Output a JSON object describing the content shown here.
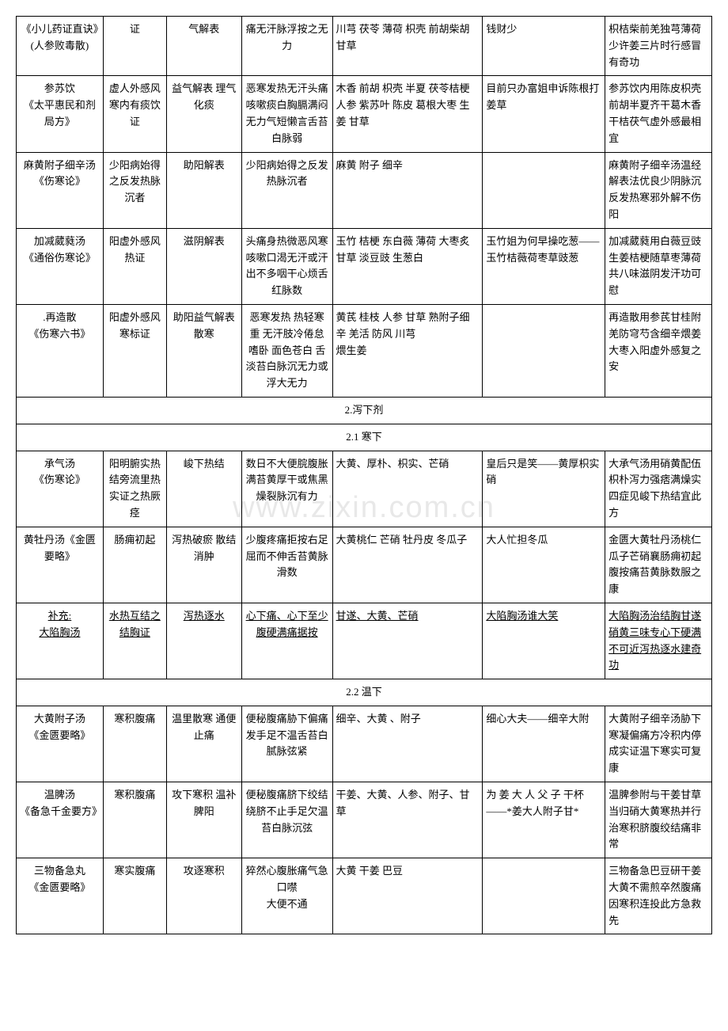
{
  "watermark": "www.zixin.com.cn",
  "rows": [
    {
      "c0": "《小儿药证直诀》(人参败毒散)",
      "c1": "证",
      "c2": "气解表",
      "c3": "痛无汗脉浮按之无力",
      "c4": "川芎 茯苓 薄荷 枳壳 前胡柴胡 甘草",
      "c5": "钱财少",
      "c6": "枳桔柴前羌独芎薄荷少许姜三片时行感冒有奇功"
    },
    {
      "c0": "参苏饮\n《太平惠民和剂局方》",
      "c1": "虚人外感风寒内有痰饮证",
      "c2": "益气解表  理气化痰",
      "c3": "恶寒发热无汗头痛咳嗽痰白胸膈满闷无力气短懒言舌苔白脉弱",
      "c4": "木香 前胡 枳壳 半夏 茯苓桔梗 人参 紫苏叶 陈皮 葛根大枣 生姜 甘草",
      "c5": "目前只办富姐申诉陈根打姜草",
      "c6": "参苏饮内用陈皮枳壳前胡半夏齐干葛木香干桔茯气虚外感最相宜"
    },
    {
      "c0": "麻黄附子细辛汤\n《伤寒论》",
      "c1": "少阳病始得之反发热脉沉者",
      "c2": "助阳解表",
      "c3": "少阳病始得之反发热脉沉者",
      "c4": "麻黄 附子 细辛",
      "c5": "",
      "c6": "麻黄附子细辛汤温经解表法优良少阴脉沉反发热寒邪外解不伤阳"
    },
    {
      "c0": "加减葳蕤汤\n《通俗伤寒论》",
      "c1": "阳虚外感风热证",
      "c2": "滋阴解表",
      "c3": "头痛身热微恶风寒咳嗽口渴无汗或汗出不多咽干心烦舌红脉数",
      "c4": "玉竹 桔梗 东白薇 薄荷 大枣炙甘草 淡豆豉 生葱白",
      "c5": "玉竹姐为何早操吃葱——玉竹桔薇荷枣草豉葱",
      "c6": "加减葳蕤用白薇豆豉生姜桔梗随草枣薄荷共八味滋阴发汗功可慰"
    },
    {
      "c0": ".再造散\n《伤寒六书》",
      "c1": "阳虚外感风寒标证",
      "c2": "助阳益气解表散寒",
      "c3": "恶寒发热 热轻寒重 无汗肢冷倦怠嗜卧 面色苍白 舌淡苔白脉沉无力或浮大无力",
      "c4": "黄芪 桂枝 人参 甘草 熟附子细辛 羌活 防风 川芎\n煨生姜",
      "c5": "",
      "c6": "再造散用参芪甘桂附羌防穹芍含细辛煨姜大枣入阳虚外感复之安"
    }
  ],
  "section1": "2.泻下剂",
  "section1_1": "2.1 寒下",
  "rows2": [
    {
      "c0": "承气汤\n《伤寒论》",
      "c1": "阳明腑实热结旁流里热实证之热厥痉",
      "c2": "峻下热结",
      "c3": "数日不大便脘腹胀满苔黄厚干或焦黑燥裂脉沉有力",
      "c4": "大黄、厚朴、枳实、芒硝",
      "c5": "皇后只是笑——黄厚枳实硝",
      "c6": "大承气汤用硝黄配伍枳朴泻力强痞满燥实四症见峻下热结宜此方"
    },
    {
      "c0": "黄牡丹汤《金匮要略》",
      "c1": "肠痈初起",
      "c2": "泻热破瘀  散结消肿",
      "c3": "少腹疼痛拒按右足屈而不伸舌苔黄脉滑数",
      "c4": "大黄桃仁 芒硝 牡丹皮 冬瓜子",
      "c5": "大人忙担冬瓜",
      "c6": "金匮大黄牡丹汤桃仁瓜子芒硝襄肠痈初起腹按痛苔黄脉数服之康"
    },
    {
      "c0": "补充:\n大陷胸汤",
      "c1": "水热互结之结胸证",
      "c2": "泻热逐水",
      "c3": "心下痛、心下至少腹硬满痛据按",
      "c4": "甘遂、大黄、芒硝",
      "c5": "大陷胸汤谁大笑",
      "c6": "大陷胸汤治结胸甘遂硝黄三味专心下硬满不可近泻热逐水建奇功",
      "u": true
    }
  ],
  "section2": "2.2 温下",
  "rows3": [
    {
      "c0": "大黄附子汤\n《金匮要略》",
      "c1": "寒积腹痛",
      "c2": "温里散寒  通便止痛",
      "c3": "便秘腹痛胁下偏痛发手足不温舌苔白腻脉弦紧",
      "c4": "细辛、大黄 、附子",
      "c5": "细心大夫——细辛大附",
      "c6": "大黄附子细辛汤胁下寒凝偏痛方冷积内停成实证温下寒实可复康"
    },
    {
      "c0": "温脾汤\n《备急千金要方》",
      "c1": "寒积腹痛",
      "c2": "攻下寒积  温补脾阳",
      "c3": "便秘腹痛脐下绞结绕脐不止手足欠温苔白脉沉弦",
      "c4": "干姜、大黄、人参、附子、甘草",
      "c5": "为 姜 大 人 父 子 干杯——*姜大人附子甘*",
      "c6": "温脾参附与干姜甘草当归硝大黄寒热并行治寒积脐腹绞结痛非常"
    },
    {
      "c0": "三物备急丸\n《金匮要略》",
      "c1": "寒实腹痛",
      "c2": "攻逐寒积",
      "c3": "猝然心腹胀痛气急口噤\n大便不通",
      "c4": "大黄 干姜 巴豆",
      "c5": "",
      "c6": "三物备急巴豆研干姜大黄不需煎卒然腹痛因寒积连投此方急救先"
    }
  ]
}
